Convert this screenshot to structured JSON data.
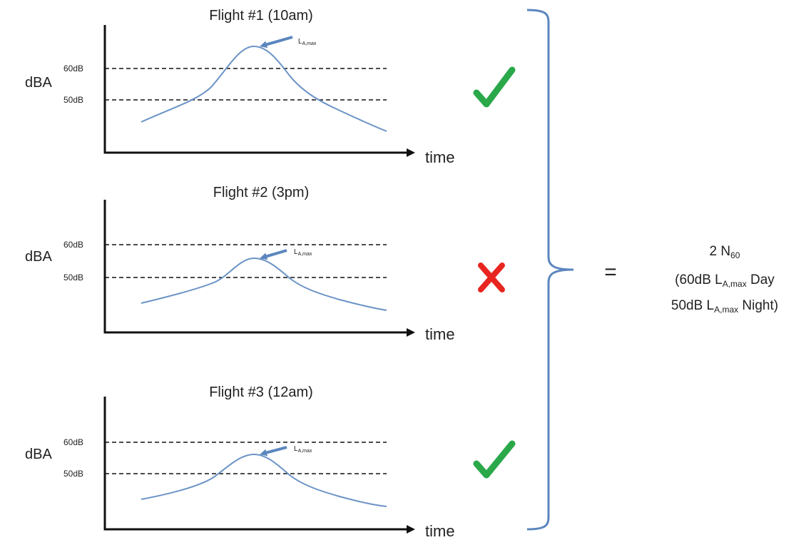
{
  "panels": [
    {
      "title": "Flight #1 (10am)",
      "y_label": "dBA",
      "x_label": "time",
      "ticks": [
        "60dB",
        "50dB"
      ],
      "peak_label": {
        "main": "L",
        "sub": "A,max"
      },
      "status": "check",
      "status_color": "#2aa84a"
    },
    {
      "title": "Flight #2 (3pm)",
      "y_label": "dBA",
      "x_label": "time",
      "ticks": [
        "60dB",
        "50dB"
      ],
      "peak_label": {
        "main": "L",
        "sub": "A,max"
      },
      "status": "cross",
      "status_color": "#e8251f"
    },
    {
      "title": "Flight #3 (12am)",
      "y_label": "dBA",
      "x_label": "time",
      "ticks": [
        "60dB",
        "50dB"
      ],
      "peak_label": {
        "main": "L",
        "sub": "A,max"
      },
      "status": "check",
      "status_color": "#2aa84a"
    }
  ],
  "equals": "=",
  "result": {
    "line1_main": "2 N",
    "line1_sub": "60",
    "line2_pre": "(60dB L",
    "line2_sub": "A,max",
    "line2_post": " Day",
    "line3_pre": "50dB L",
    "line3_sub": "A,max",
    "line3_post": " Night)"
  },
  "colors": {
    "curve": "#6b93c6",
    "bracket": "#5b86be",
    "axis": "#111111",
    "dashed": "#111111"
  }
}
